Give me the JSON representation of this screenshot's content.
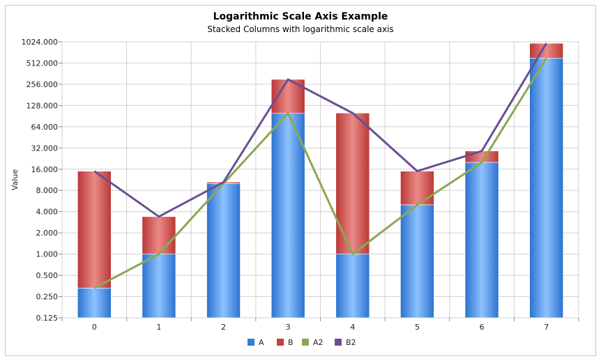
{
  "chart_data": {
    "type": "bar",
    "stacked": true,
    "title": "Logarithmic Scale Axis Example",
    "subtitle": "Stacked Columns with logarithmic scale axis",
    "xlabel": "",
    "ylabel": "Value",
    "y_scale": "log2",
    "ylim": [
      0.125,
      1024
    ],
    "y_ticks": [
      "0.125",
      "0.250",
      "0.500",
      "1.000",
      "2.000",
      "4.000",
      "8.000",
      "16.000",
      "32.000",
      "64.000",
      "128.000",
      "256.000",
      "512.000",
      "1024.000"
    ],
    "categories": [
      "0",
      "1",
      "2",
      "3",
      "4",
      "5",
      "6",
      "7"
    ],
    "grid": true,
    "legend_position": "bottom",
    "series": [
      {
        "name": "A",
        "kind": "bar",
        "color": "#2f7ed8",
        "values": [
          0.33,
          1,
          10,
          100,
          1,
          5,
          20,
          600
        ]
      },
      {
        "name": "B",
        "kind": "bar",
        "color": "#c8403f",
        "values": [
          14.67,
          2.4,
          0.5,
          200,
          99,
          10,
          9,
          375
        ]
      },
      {
        "name": "A2",
        "kind": "line",
        "color": "#8aa852",
        "values": [
          0.33,
          1,
          10,
          100,
          1,
          5,
          20,
          600
        ]
      },
      {
        "name": "B2",
        "kind": "line",
        "color": "#6b4e92",
        "values": [
          15,
          3.4,
          10.5,
          300,
          100,
          15,
          29,
          975
        ]
      }
    ]
  }
}
